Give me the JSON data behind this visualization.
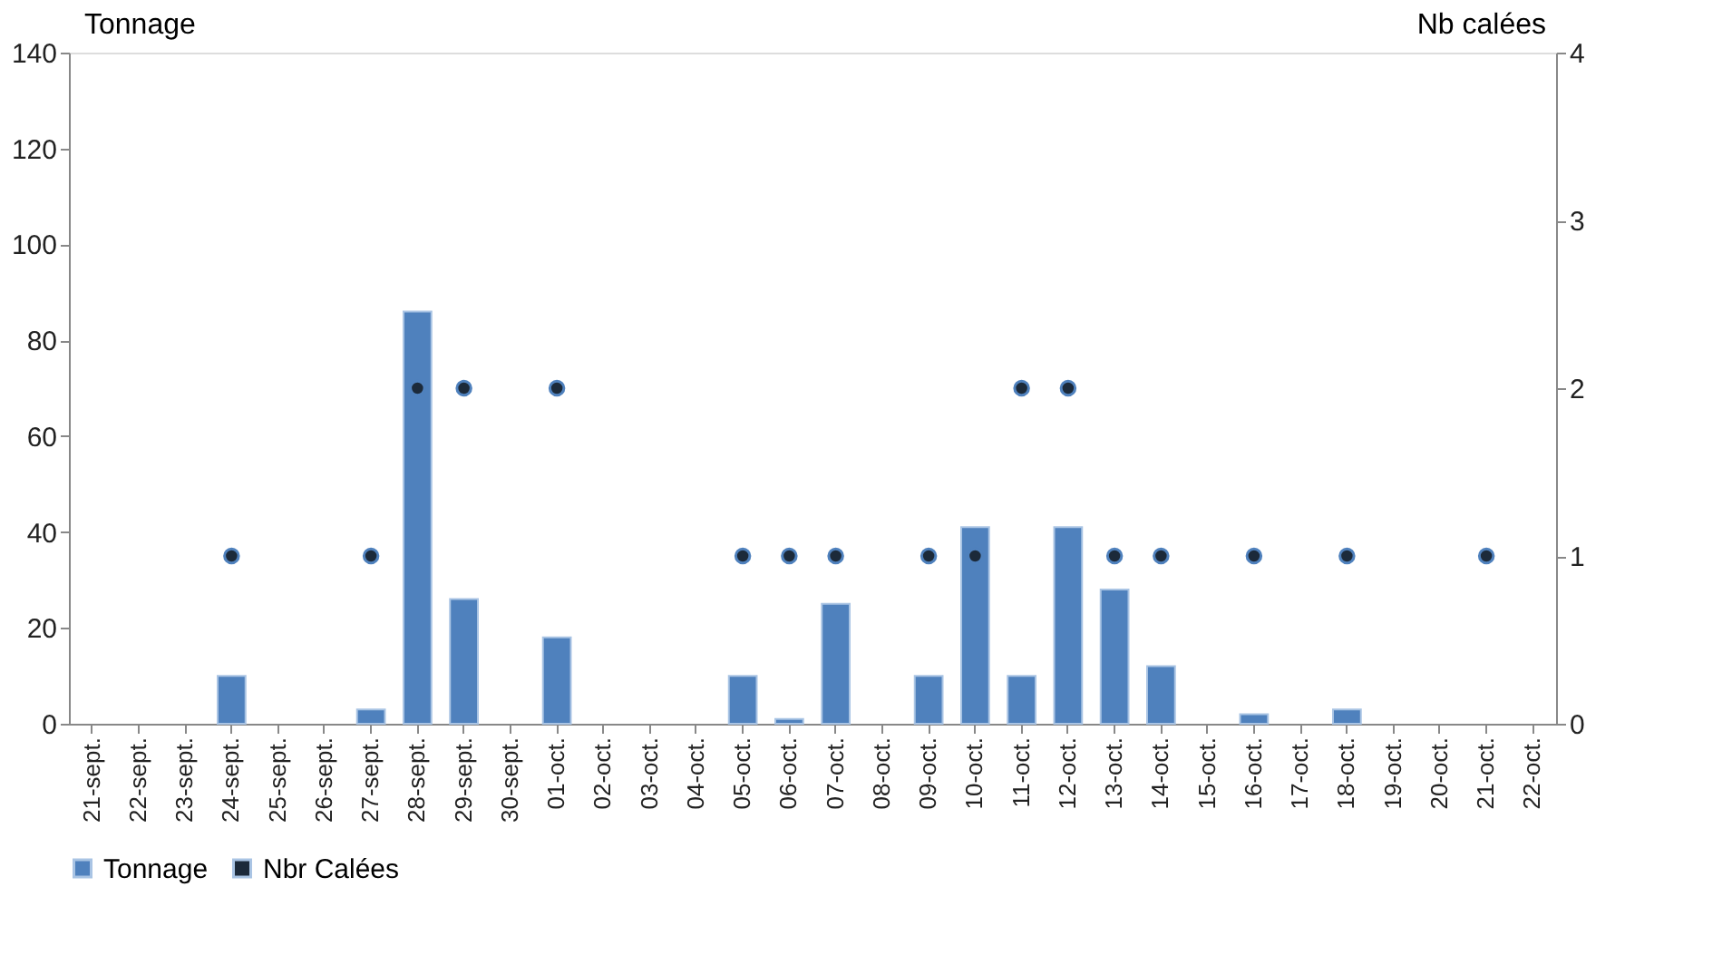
{
  "chart_data": {
    "type": "bar",
    "ylabel": "Tonnage",
    "y2label": "Nb calées",
    "categories": [
      "21-sept.",
      "22-sept.",
      "23-sept.",
      "24-sept.",
      "25-sept.",
      "26-sept.",
      "27-sept.",
      "28-sept.",
      "29-sept.",
      "30-sept.",
      "01-oct.",
      "02-oct.",
      "03-oct.",
      "04-oct.",
      "05-oct.",
      "06-oct.",
      "07-oct.",
      "08-oct.",
      "09-oct.",
      "10-oct.",
      "11-oct.",
      "12-oct.",
      "13-oct.",
      "14-oct.",
      "15-oct.",
      "16-oct.",
      "17-oct.",
      "18-oct.",
      "19-oct.",
      "20-oct.",
      "21-oct.",
      "22-oct."
    ],
    "series": [
      {
        "name": "Tonnage",
        "color": "#4f81bd",
        "values": [
          null,
          null,
          null,
          10,
          null,
          null,
          3,
          86,
          26,
          null,
          18,
          null,
          null,
          null,
          10,
          1,
          25,
          null,
          10,
          41,
          10,
          41,
          28,
          12,
          null,
          2,
          null,
          3,
          null,
          null,
          null,
          null
        ]
      },
      {
        "name": "Nbr Calées",
        "type": "scatter",
        "axis": "y2",
        "color": "#1c2a3a",
        "values": [
          null,
          null,
          null,
          1,
          null,
          null,
          1,
          2,
          2,
          null,
          2,
          null,
          null,
          null,
          1,
          1,
          1,
          null,
          1,
          1,
          2,
          2,
          1,
          1,
          null,
          1,
          null,
          1,
          null,
          null,
          1,
          null
        ]
      }
    ],
    "ylim": [
      0,
      140
    ],
    "yticks": [
      0,
      20,
      40,
      60,
      80,
      100,
      120,
      140
    ],
    "y2lim": [
      0,
      4
    ],
    "y2ticks": [
      0,
      1,
      2,
      3,
      4
    ],
    "grid": false,
    "legend": "bottom",
    "marker": "circle"
  }
}
